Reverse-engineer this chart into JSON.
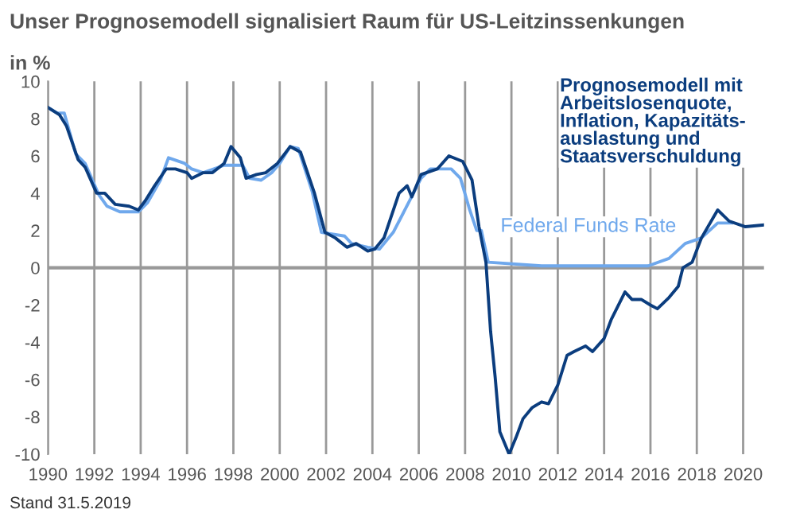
{
  "chart_data": {
    "type": "line",
    "title": "Unser Prognosemodell signalisiert Raum für US-Leitzinssenkungen",
    "ylabel": "in %",
    "annotations": [
      "Stand 31.5.2019"
    ],
    "xlim": [
      1990,
      2020.9
    ],
    "xticks": [
      1990,
      1992,
      1994,
      1996,
      1998,
      2000,
      2002,
      2004,
      2006,
      2008,
      2010,
      2012,
      2014,
      2016,
      2018,
      2020
    ],
    "ylim": [
      -10,
      10
    ],
    "yticks": [
      -10,
      -8,
      -6,
      -4,
      -2,
      0,
      2,
      4,
      6,
      8,
      10
    ],
    "grid": "x",
    "legend": false,
    "line_style": "solid",
    "marker": "none",
    "ref_lines": [
      {
        "axis": "y",
        "value": 0,
        "color": "#999999"
      }
    ],
    "series": [
      {
        "name": "Prognosemodell mit\nArbeitslosenquote,\nInflation, Kapazitäts-\nauslastung und\nStaatsverschuldung",
        "color": "#0b3d7e",
        "x": [
          1990.0,
          1990.5,
          1990.8,
          1991.3,
          1991.6,
          1992.1,
          1992.45,
          1992.9,
          1993.5,
          1993.9,
          1994.2,
          1994.6,
          1995.1,
          1995.5,
          1996.0,
          1996.2,
          1996.7,
          1997.1,
          1997.6,
          1997.9,
          1998.3,
          1998.55,
          1999.0,
          1999.4,
          1999.9,
          2000.45,
          2000.9,
          2001.5,
          2001.95,
          2002.4,
          2002.9,
          2003.3,
          2003.8,
          2004.1,
          2004.5,
          2005.15,
          2005.5,
          2005.7,
          2006.1,
          2006.8,
          2007.3,
          2007.9,
          2008.3,
          2008.6,
          2008.9,
          2009.1,
          2009.3,
          2009.5,
          2009.9,
          2010.2,
          2010.5,
          2010.9,
          2011.3,
          2011.6,
          2012.0,
          2012.4,
          2012.7,
          2013.2,
          2013.5,
          2014.0,
          2014.3,
          2014.9,
          2015.2,
          2015.6,
          2016.0,
          2016.3,
          2016.8,
          2017.2,
          2017.4,
          2017.8,
          2018.2,
          2018.9,
          2019.4,
          2020.1,
          2020.9
        ],
        "values": [
          8.6,
          8.2,
          7.6,
          5.8,
          5.4,
          4.0,
          4.0,
          3.4,
          3.3,
          3.1,
          3.6,
          4.4,
          5.3,
          5.3,
          5.1,
          4.8,
          5.1,
          5.1,
          5.6,
          6.5,
          5.9,
          4.8,
          5.0,
          5.1,
          5.6,
          6.5,
          6.2,
          4.0,
          1.9,
          1.6,
          1.1,
          1.3,
          0.9,
          1.0,
          1.6,
          4.0,
          4.4,
          3.8,
          5.0,
          5.3,
          6.0,
          5.7,
          4.7,
          2.2,
          0.3,
          -3.4,
          -5.9,
          -8.8,
          -10.0,
          -9.1,
          -8.1,
          -7.5,
          -7.2,
          -7.3,
          -6.3,
          -4.7,
          -4.5,
          -4.2,
          -4.5,
          -3.8,
          -2.8,
          -1.3,
          -1.7,
          -1.7,
          -2.0,
          -2.2,
          -1.6,
          -1.0,
          0.0,
          0.3,
          1.6,
          3.1,
          2.5,
          2.2,
          2.3
        ]
      },
      {
        "name": "Federal Funds Rate",
        "color": "#6fa8ec",
        "x": [
          1990.0,
          1990.4,
          1990.7,
          1991.2,
          1991.6,
          1992.2,
          1992.55,
          1993.1,
          1993.9,
          1994.3,
          1994.85,
          1995.2,
          1995.9,
          1996.2,
          1996.7,
          1997.6,
          1998.05,
          1998.4,
          1998.7,
          1999.2,
          1999.65,
          2000.0,
          2000.45,
          2000.8,
          2001.4,
          2001.8,
          2002.8,
          2003.1,
          2003.8,
          2004.3,
          2004.9,
          2005.4,
          2006.1,
          2006.5,
          2007.4,
          2007.8,
          2008.2,
          2008.5,
          2008.7,
          2009.0,
          2011.3,
          2015.9,
          2016.8,
          2017.5,
          2018.2,
          2018.9,
          2019.5
        ],
        "values": [
          8.6,
          8.3,
          8.3,
          6.1,
          5.6,
          3.9,
          3.3,
          3.0,
          3.0,
          3.5,
          4.7,
          5.9,
          5.6,
          5.3,
          5.1,
          5.5,
          5.5,
          5.5,
          4.8,
          4.7,
          5.1,
          5.6,
          6.5,
          6.4,
          4.1,
          1.9,
          1.7,
          1.3,
          1.1,
          1.0,
          1.9,
          3.1,
          4.8,
          5.3,
          5.3,
          4.8,
          3.1,
          2.0,
          2.0,
          0.3,
          0.1,
          0.1,
          0.5,
          1.3,
          1.6,
          2.4,
          2.4
        ]
      }
    ]
  }
}
